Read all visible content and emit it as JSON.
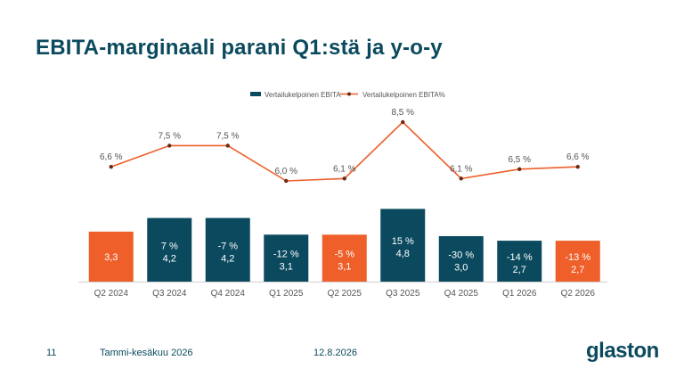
{
  "slide": {
    "title": "EBITA-marginaali parani Q1:stä ja y-o-y",
    "footer": {
      "page_number": "11",
      "period": "Tammi-kesäkuu 2026",
      "date": "12.8.2026"
    },
    "logo_text": "glaston"
  },
  "colors": {
    "title": "#0b4a5e",
    "bar_primary": "#0b4a5e",
    "bar_highlight": "#ee5f2a",
    "line": "#ee5f2a",
    "line_marker": "#6b2a12",
    "axis_text": "#555555"
  },
  "chart_data": {
    "type": "bar",
    "categories": [
      "Q2 2024",
      "Q3 2024",
      "Q4 2024",
      "Q1 2025",
      "Q2 2025",
      "Q3 2025",
      "Q4 2025",
      "Q1 2026",
      "Q2 2026"
    ],
    "series": [
      {
        "name": "Vertailukelpoinen EBITA",
        "type": "bar",
        "values": [
          3.3,
          4.2,
          4.2,
          3.1,
          3.1,
          4.8,
          3.0,
          2.7,
          2.7
        ],
        "value_labels": [
          "3,3",
          "4,2",
          "4,2",
          "3,1",
          "3,1",
          "4,8",
          "3,0",
          "2,7",
          "2,7"
        ],
        "change_labels": [
          "",
          "7 %",
          "-7 %",
          "-12 %",
          "-5 %",
          "15 %",
          "-30 %",
          "-14 %",
          "-13 %"
        ],
        "highlighted": [
          true,
          false,
          false,
          false,
          true,
          false,
          false,
          false,
          true
        ]
      },
      {
        "name": "Vertailukelpoinen EBITA%",
        "type": "line",
        "values": [
          6.6,
          7.5,
          7.5,
          6.0,
          6.1,
          8.5,
          6.1,
          6.5,
          6.6
        ],
        "value_labels": [
          "6,6 %",
          "7,5 %",
          "7,5 %",
          "6,0 %",
          "6,1 %",
          "8,5 %",
          "6,1 %",
          "6,5 %",
          "6,6 %"
        ]
      }
    ],
    "legend_position": "top-center",
    "grid": false
  }
}
